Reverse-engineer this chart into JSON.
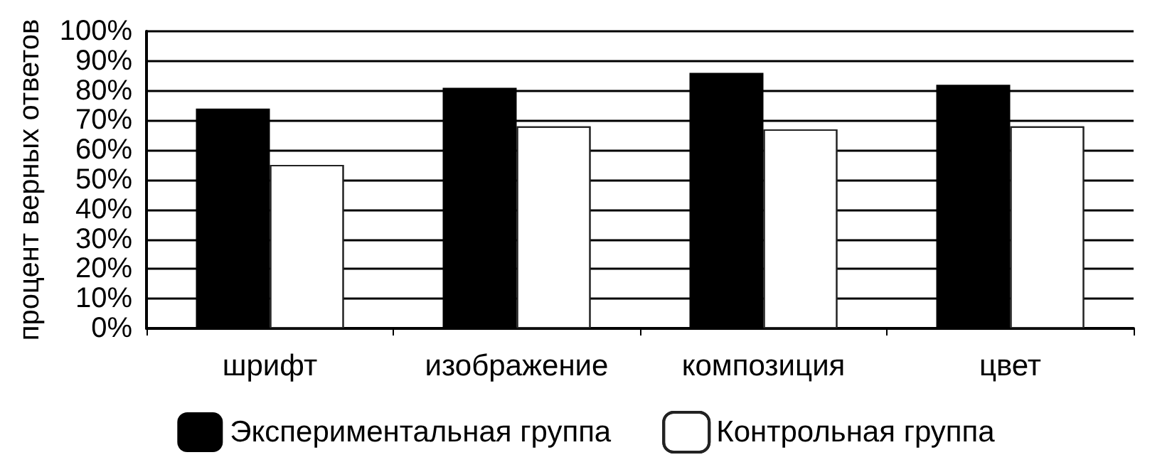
{
  "chart_data": {
    "type": "bar",
    "ylabel": "процент верных ответов",
    "categories": [
      "шрифт",
      "изображение",
      "композиция",
      "цвет"
    ],
    "series": [
      {
        "name": "Экспериментальная группа",
        "color": "#000000",
        "values": [
          74,
          81,
          86,
          82
        ]
      },
      {
        "name": "Контрольная группа",
        "color": "#222222",
        "values": [
          55,
          68,
          67,
          68
        ]
      }
    ],
    "ylim": [
      0,
      100
    ],
    "yticks": [
      {
        "value": 0,
        "label": "0%"
      },
      {
        "value": 10,
        "label": "10%"
      },
      {
        "value": 20,
        "label": "20%"
      },
      {
        "value": 30,
        "label": "30%"
      },
      {
        "value": 40,
        "label": "40%"
      },
      {
        "value": 50,
        "label": "50%"
      },
      {
        "value": 60,
        "label": "60%"
      },
      {
        "value": 70,
        "label": "70%"
      },
      {
        "value": 80,
        "label": "80%"
      },
      {
        "value": 90,
        "label": "90%"
      },
      {
        "value": 100,
        "label": "100%"
      }
    ],
    "grid": "y",
    "legend": "bottom"
  }
}
